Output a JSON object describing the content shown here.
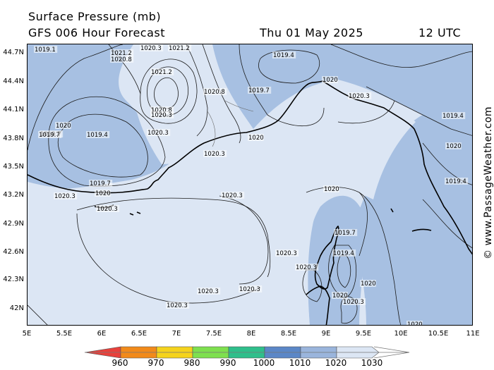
{
  "header": {
    "title": "Surface Pressure (mb)",
    "subtitle": "GFS 006 Hour Forecast",
    "date": "Thu 01 May 2025",
    "time": "12 UTC"
  },
  "side_credit": "© www.PassageWeather.com",
  "axes": {
    "y_ticks": [
      "44.7N",
      "44.4N",
      "44.1N",
      "43.8N",
      "43.5N",
      "43.2N",
      "42.9N",
      "42.6N",
      "42.3N",
      "42N"
    ],
    "x_ticks": [
      "5E",
      "5.5E",
      "6E",
      "6.5E",
      "7E",
      "7.5E",
      "8E",
      "8.5E",
      "9E",
      "9.5E",
      "10E",
      "10.5E",
      "11E"
    ]
  },
  "isobar_labels": [
    {
      "t": "1019.1"
    },
    {
      "t": "1021.2"
    },
    {
      "t": "1020.3"
    },
    {
      "t": "1021.2"
    },
    {
      "t": "1020.8"
    },
    {
      "t": "1019.4"
    },
    {
      "t": "1021.2"
    },
    {
      "t": "1020"
    },
    {
      "t": "1020.8"
    },
    {
      "t": "1019.7"
    },
    {
      "t": "1020.3"
    },
    {
      "t": "1020.8"
    },
    {
      "t": "1020.3"
    },
    {
      "t": "1019.7"
    },
    {
      "t": "1020"
    },
    {
      "t": "1019.7"
    },
    {
      "t": "1019.4"
    },
    {
      "t": "1020.3"
    },
    {
      "t": "1020"
    },
    {
      "t": "1020.3"
    },
    {
      "t": "1019.4"
    },
    {
      "t": "1019.7"
    },
    {
      "t": "1020"
    },
    {
      "t": "1019.4"
    },
    {
      "t": "1020.3"
    },
    {
      "t": "1020.3"
    },
    {
      "t": "1020"
    },
    {
      "t": "1020.3"
    },
    {
      "t": "1019.7"
    },
    {
      "t": "1019.4"
    },
    {
      "t": "1020.3"
    },
    {
      "t": "1020.3"
    },
    {
      "t": "1020.3"
    },
    {
      "t": "1020"
    },
    {
      "t": "1020"
    },
    {
      "t": "1020.3"
    },
    {
      "t": "1020.3"
    },
    {
      "t": "1020.3"
    },
    {
      "t": "1020"
    },
    {
      "t": "1020"
    }
  ],
  "colorbar": {
    "labels": [
      "960",
      "970",
      "980",
      "990",
      "1000",
      "1010",
      "1020",
      "1030"
    ],
    "colors": [
      "#e8413c",
      "#f28a1a",
      "#f5d31c",
      "#7ee04e",
      "#2fbf8b",
      "#5b87c7",
      "#9ab5dc",
      "#dce6f4"
    ]
  },
  "map_colors": {
    "high": "#dce6f4",
    "low": "#a7c0e2",
    "coast": "#000000"
  }
}
